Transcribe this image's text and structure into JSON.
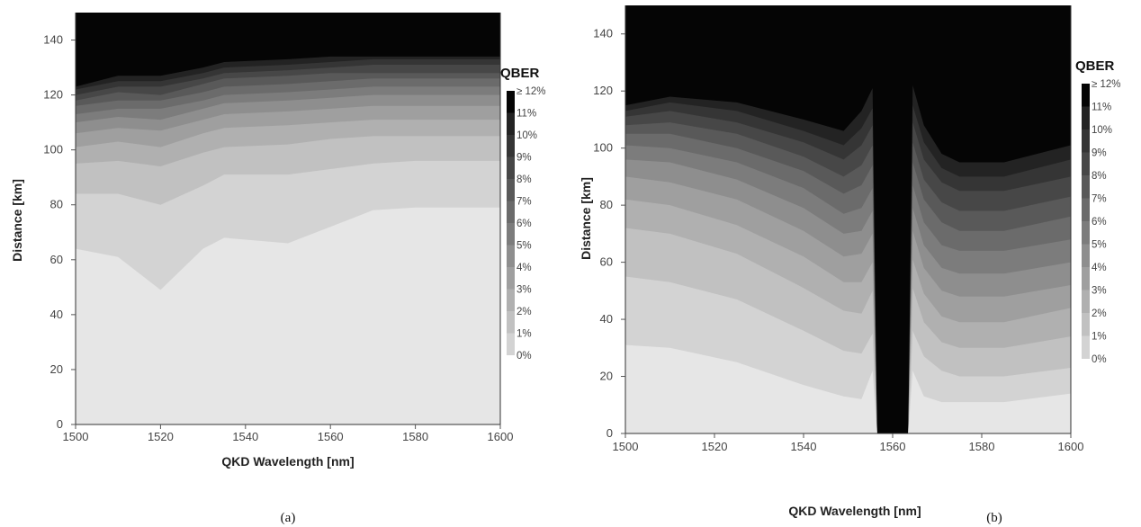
{
  "chart_data": [
    {
      "type": "heatmap",
      "panel_caption": "(a)",
      "xlabel": "QKD Wavelength [nm]",
      "ylabel": "Distance [km]",
      "xlim": [
        1500,
        1600
      ],
      "ylim": [
        0,
        150
      ],
      "xticks": [
        "1500",
        "1520",
        "1540",
        "1560",
        "1580",
        "1600"
      ],
      "yticks": [
        "0",
        "20",
        "40",
        "60",
        "80",
        "100",
        "120",
        "140"
      ],
      "colorbar_title": "QBER",
      "colorbar_labels": [
        "≥ 12%",
        "11%",
        "10%",
        "9%",
        "8%",
        "7%",
        "6%",
        "5%",
        "4%",
        "3%",
        "2%",
        "1%",
        "0%"
      ],
      "contour_x": [
        1500,
        1510,
        1520,
        1530,
        1535,
        1550,
        1560,
        1570,
        1580,
        1590,
        1600
      ],
      "contours": [
        {
          "qber": "1%",
          "distance": [
            64,
            61,
            49,
            64,
            68,
            66,
            72,
            78,
            79,
            79,
            79
          ]
        },
        {
          "qber": "2%",
          "distance": [
            84,
            84,
            80,
            87,
            91,
            91,
            93,
            95,
            96,
            96,
            96
          ]
        },
        {
          "qber": "3%",
          "distance": [
            95,
            96,
            94,
            99,
            101,
            102,
            104,
            105,
            105,
            105,
            105
          ]
        },
        {
          "qber": "4%",
          "distance": [
            101,
            103,
            101,
            106,
            108,
            109,
            110,
            111,
            111,
            111,
            111
          ]
        },
        {
          "qber": "5%",
          "distance": [
            106,
            108,
            107,
            111,
            113,
            114,
            115,
            116,
            116,
            116,
            116
          ]
        },
        {
          "qber": "6%",
          "distance": [
            110,
            112,
            111,
            115,
            117,
            118,
            119,
            120,
            120,
            120,
            120
          ]
        },
        {
          "qber": "7%",
          "distance": [
            113,
            115,
            115,
            118,
            120,
            121,
            122,
            123,
            123,
            123,
            123
          ]
        },
        {
          "qber": "8%",
          "distance": [
            116,
            118,
            118,
            121,
            123,
            124,
            125,
            126,
            126,
            126,
            126
          ]
        },
        {
          "qber": "9%",
          "distance": [
            118,
            121,
            120,
            124,
            126,
            127,
            128,
            128,
            128,
            128,
            128
          ]
        },
        {
          "qber": "10%",
          "distance": [
            120,
            123,
            123,
            126,
            128,
            129,
            130,
            131,
            131,
            131,
            131
          ]
        },
        {
          "qber": "11%",
          "distance": [
            122,
            125,
            125,
            128,
            130,
            131,
            132,
            133,
            133,
            133,
            133
          ]
        },
        {
          "qber": "≥ 12%",
          "distance": [
            123,
            127,
            127,
            130,
            132,
            133,
            134,
            134,
            134,
            134,
            134
          ]
        }
      ]
    },
    {
      "type": "heatmap",
      "panel_caption": "(b)",
      "xlabel": "QKD Wavelength [nm]",
      "ylabel": "Distance [km]",
      "xlim": [
        1500,
        1600
      ],
      "ylim": [
        0,
        150
      ],
      "xticks": [
        "1500",
        "1520",
        "1540",
        "1560",
        "1580",
        "1600"
      ],
      "yticks": [
        "0",
        "20",
        "40",
        "60",
        "80",
        "100",
        "120",
        "140"
      ],
      "colorbar_title": "QBER",
      "colorbar_labels": [
        "≥ 12%",
        "11%",
        "10%",
        "9%",
        "8%",
        "7%",
        "6%",
        "5%",
        "4%",
        "3%",
        "2%",
        "1%",
        "0%"
      ],
      "contour_x": [
        1500,
        1510,
        1525,
        1540,
        1549,
        1553,
        1555.5,
        1556.5,
        1563.5,
        1564.5,
        1567,
        1571,
        1575,
        1585,
        1600
      ],
      "contours": [
        {
          "qber": "1%",
          "distance": [
            31,
            30,
            25,
            17,
            13,
            12,
            22,
            0,
            0,
            22,
            13,
            11,
            11,
            11,
            14
          ]
        },
        {
          "qber": "2%",
          "distance": [
            55,
            53,
            47,
            36,
            29,
            28,
            35,
            0,
            0,
            36,
            27,
            22,
            20,
            20,
            23
          ]
        },
        {
          "qber": "3%",
          "distance": [
            72,
            70,
            63,
            51,
            43,
            42,
            50,
            0,
            0,
            51,
            39,
            32,
            30,
            30,
            34
          ]
        },
        {
          "qber": "4%",
          "distance": [
            82,
            80,
            73,
            62,
            53,
            53,
            60,
            0,
            0,
            61,
            49,
            41,
            39,
            39,
            44
          ]
        },
        {
          "qber": "5%",
          "distance": [
            90,
            88,
            82,
            71,
            62,
            63,
            70,
            0,
            0,
            71,
            58,
            50,
            48,
            48,
            52
          ]
        },
        {
          "qber": "6%",
          "distance": [
            96,
            95,
            89,
            79,
            70,
            71,
            78,
            0,
            0,
            79,
            66,
            58,
            56,
            56,
            60
          ]
        },
        {
          "qber": "7%",
          "distance": [
            101,
            100,
            95,
            86,
            77,
            79,
            86,
            0,
            0,
            87,
            74,
            66,
            64,
            64,
            68
          ]
        },
        {
          "qber": "8%",
          "distance": [
            105,
            105,
            100,
            92,
            84,
            87,
            94,
            0,
            0,
            95,
            82,
            74,
            71,
            71,
            76
          ]
        },
        {
          "qber": "9%",
          "distance": [
            108,
            109,
            105,
            97,
            90,
            94,
            101,
            0,
            0,
            102,
            89,
            81,
            78,
            78,
            83
          ]
        },
        {
          "qber": "10%",
          "distance": [
            111,
            113,
            109,
            102,
            96,
            101,
            108,
            0,
            0,
            109,
            96,
            88,
            85,
            85,
            90
          ]
        },
        {
          "qber": "11%",
          "distance": [
            113,
            116,
            113,
            106,
            101,
            107,
            114,
            0,
            0,
            115,
            102,
            93,
            90,
            90,
            96
          ]
        },
        {
          "qber": "≥ 12%",
          "distance": [
            115,
            118,
            116,
            110,
            106,
            113,
            121,
            0,
            0,
            122,
            108,
            98,
            95,
            95,
            101
          ]
        }
      ]
    }
  ]
}
